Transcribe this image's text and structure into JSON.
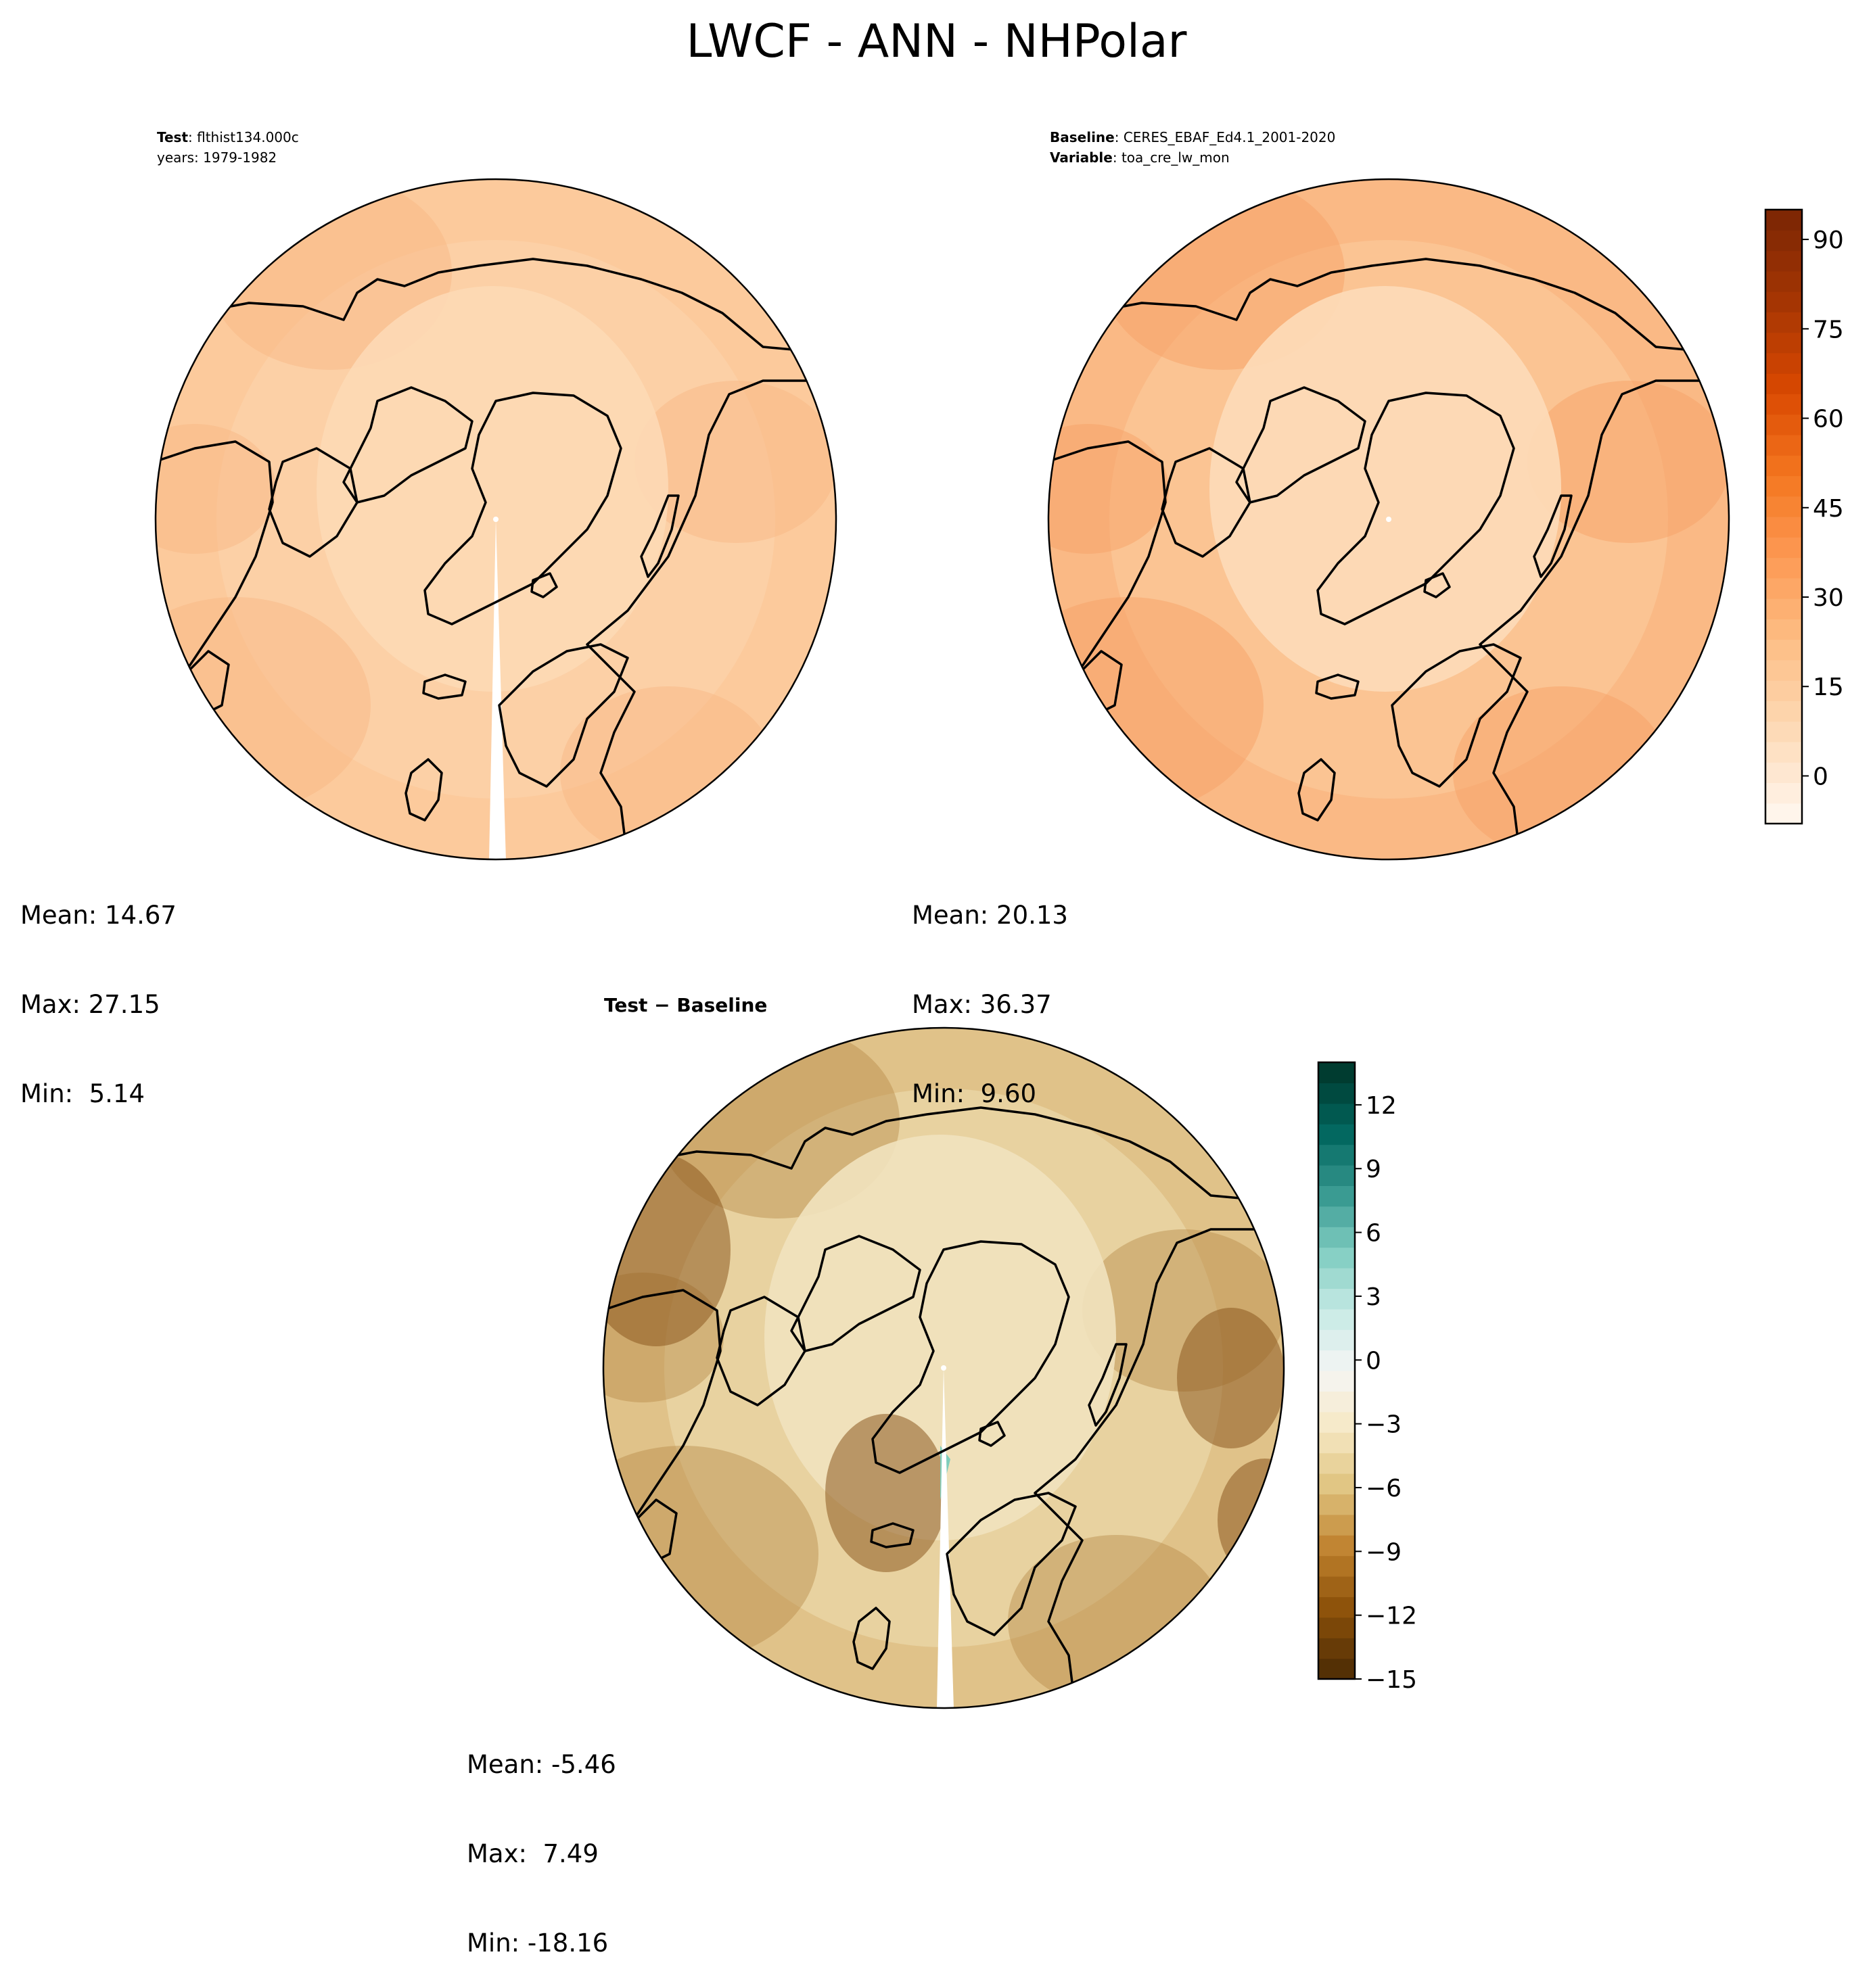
{
  "title": "LWCF - ANN - NHPolar",
  "panels": {
    "test": {
      "header": [
        {
          "key": "Test",
          "value": ": flthist134.000c"
        },
        {
          "key": "",
          "value": "years: 1979-1982"
        }
      ],
      "stats": {
        "mean": "Mean: 14.67",
        "max": "Max: 27.15",
        "min": "Min:  5.14"
      },
      "palette": [
        "#fdd9b5",
        "#fcd0a6",
        "#fbc594",
        "#f9b683"
      ]
    },
    "baseline": {
      "header": [
        {
          "key": "Baseline",
          "value": ": CERES_EBAF_Ed4.1_2001-2020"
        },
        {
          "key": "Variable",
          "value": ": toa_cre_lw_mon"
        }
      ],
      "stats": {
        "mean": "Mean: 20.13",
        "max": "Max: 36.37",
        "min": "Min:  9.60"
      },
      "palette": [
        "#fddbb9",
        "#fbc493",
        "#f9b07a",
        "#f6a064"
      ]
    },
    "diff": {
      "title": "Test − Baseline",
      "stats": {
        "mean": "Mean: -5.46",
        "max": "Max:  7.49",
        "min": "Min: -18.16"
      },
      "palette": [
        "#f1e2be",
        "#e8d2a0",
        "#d8b577",
        "#b98b4a",
        "#8d5a20"
      ]
    }
  },
  "colorbars": {
    "main": {
      "ticks": [
        "0",
        "15",
        "30",
        "45",
        "60",
        "75",
        "90"
      ],
      "tick_values": [
        0,
        15,
        30,
        45,
        60,
        75,
        90
      ],
      "range": [
        -8,
        95
      ],
      "colors": [
        "#fff5eb",
        "#fdd9b5",
        "#fdbf87",
        "#fd9a55",
        "#f4761f",
        "#d94801",
        "#a63603",
        "#7f2704"
      ]
    },
    "diff": {
      "ticks": [
        "12",
        "9",
        "6",
        "3",
        "0",
        "−3",
        "−6",
        "−9",
        "−12",
        "−15"
      ],
      "tick_values": [
        12,
        9,
        6,
        3,
        0,
        -3,
        -6,
        -9,
        -12,
        -15
      ],
      "range": [
        -15,
        14
      ],
      "colors": [
        "#543005",
        "#8c510a",
        "#bf812d",
        "#dfc27d",
        "#f6e8c3",
        "#f5f5f5",
        "#c7eae5",
        "#80cdc1",
        "#35978f",
        "#01665e",
        "#003c30"
      ]
    }
  }
}
